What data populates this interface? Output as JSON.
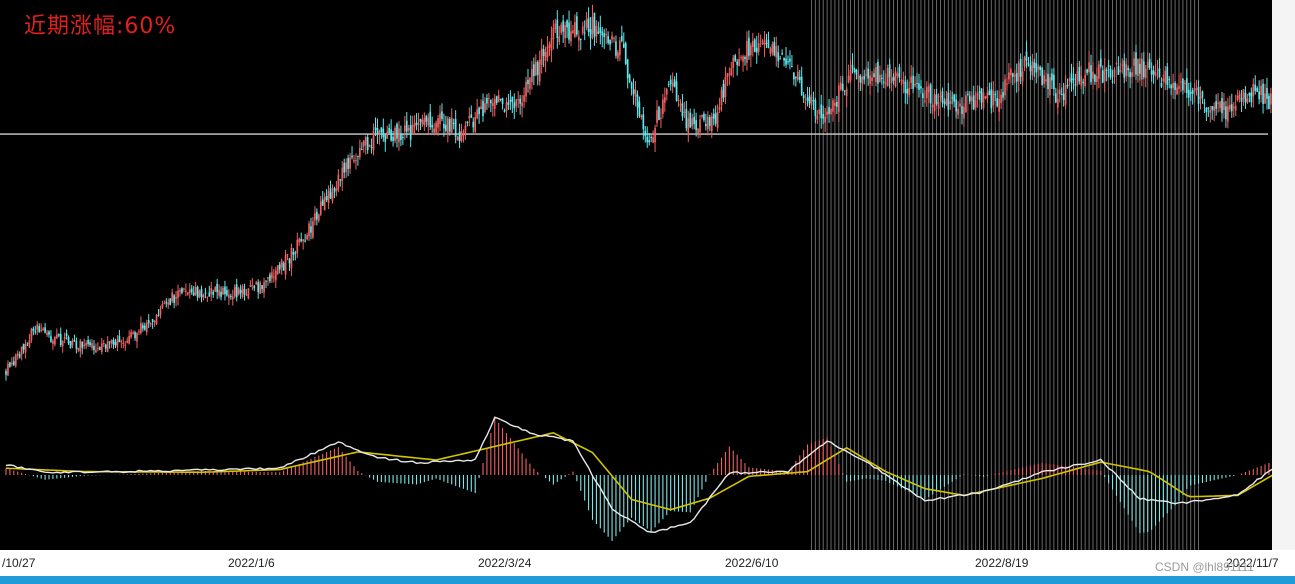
{
  "title": "近期涨幅:60%",
  "watermark": "CSDN @lhl891111",
  "colors": {
    "background": "#000000",
    "up": "#f06060",
    "down": "#5ee8ec",
    "hline": "#d0d0d0",
    "dif": "#e8e8e8",
    "dea": "#d4c400",
    "hist_up": "#f06060",
    "hist_down": "#7ee6e6",
    "highlight": "#9a9a9a"
  },
  "chart_data": {
    "type": "candlestick",
    "x_labels": [
      "/10/27",
      "2022/1/6",
      "2022/3/24",
      "2022/6/10",
      "2022/8/19",
      "2022/11/7"
    ],
    "highlight_range": [
      "2022/6/10",
      "2022/11/7"
    ],
    "price_keypoints": [
      [
        0,
        14.6
      ],
      [
        6,
        15.8
      ],
      [
        14,
        18.0
      ],
      [
        30,
        17.0
      ],
      [
        44,
        16.6
      ],
      [
        60,
        17.0
      ],
      [
        74,
        18.7
      ],
      [
        84,
        20.4
      ],
      [
        96,
        21.0
      ],
      [
        110,
        20.8
      ],
      [
        120,
        20.8
      ],
      [
        134,
        21.6
      ],
      [
        144,
        23.5
      ],
      [
        156,
        26.2
      ],
      [
        176,
        31.5
      ],
      [
        190,
        33.2
      ],
      [
        208,
        33.6
      ],
      [
        222,
        34.8
      ],
      [
        232,
        33.4
      ],
      [
        248,
        36.0
      ],
      [
        262,
        35.8
      ],
      [
        280,
        41.3
      ],
      [
        300,
        41.8
      ],
      [
        316,
        39.8
      ],
      [
        328,
        32.8
      ],
      [
        340,
        37.1
      ],
      [
        348,
        34.6
      ],
      [
        362,
        34.1
      ],
      [
        372,
        39.5
      ],
      [
        388,
        40.6
      ],
      [
        404,
        38.1
      ],
      [
        412,
        35.6
      ],
      [
        420,
        35.0
      ],
      [
        426,
        36.6
      ],
      [
        432,
        38.1
      ],
      [
        440,
        38.4
      ],
      [
        456,
        37.7
      ],
      [
        472,
        36.6
      ],
      [
        486,
        35.6
      ],
      [
        496,
        36.1
      ],
      [
        506,
        36.1
      ],
      [
        514,
        37.8
      ],
      [
        524,
        39.0
      ],
      [
        538,
        36.5
      ],
      [
        552,
        38.3
      ],
      [
        566,
        38.1
      ],
      [
        580,
        38.8
      ],
      [
        594,
        37.6
      ],
      [
        606,
        36.8
      ],
      [
        616,
        35.6
      ],
      [
        624,
        35.2
      ],
      [
        632,
        36.2
      ],
      [
        640,
        37.0
      ],
      [
        648,
        35.7
      ]
    ],
    "reference_line": 33.4,
    "macd_dif_keypoints": [
      [
        0,
        0.15
      ],
      [
        20,
        0.04
      ],
      [
        60,
        0.05
      ],
      [
        100,
        0.07
      ],
      [
        140,
        0.1
      ],
      [
        170,
        0.48
      ],
      [
        190,
        0.26
      ],
      [
        210,
        0.18
      ],
      [
        240,
        0.22
      ],
      [
        250,
        0.84
      ],
      [
        270,
        0.6
      ],
      [
        290,
        0.5
      ],
      [
        310,
        -0.5
      ],
      [
        330,
        -0.85
      ],
      [
        350,
        -0.7
      ],
      [
        370,
        0.03
      ],
      [
        400,
        0.05
      ],
      [
        420,
        0.5
      ],
      [
        440,
        0.2
      ],
      [
        470,
        -0.38
      ],
      [
        500,
        -0.25
      ],
      [
        530,
        0.04
      ],
      [
        560,
        0.22
      ],
      [
        580,
        -0.35
      ],
      [
        600,
        -0.42
      ],
      [
        630,
        -0.3
      ],
      [
        648,
        0.1
      ]
    ],
    "macd_dea_keypoints": [
      [
        0,
        0.1
      ],
      [
        40,
        0.05
      ],
      [
        100,
        0.04
      ],
      [
        140,
        0.08
      ],
      [
        180,
        0.34
      ],
      [
        220,
        0.22
      ],
      [
        250,
        0.42
      ],
      [
        280,
        0.62
      ],
      [
        300,
        0.33
      ],
      [
        320,
        -0.36
      ],
      [
        340,
        -0.51
      ],
      [
        360,
        -0.34
      ],
      [
        380,
        -0.02
      ],
      [
        410,
        0.05
      ],
      [
        430,
        0.4
      ],
      [
        450,
        0.05
      ],
      [
        470,
        -0.2
      ],
      [
        490,
        -0.3
      ],
      [
        530,
        -0.05
      ],
      [
        560,
        0.19
      ],
      [
        585,
        0.05
      ],
      [
        605,
        -0.32
      ],
      [
        630,
        -0.3
      ],
      [
        648,
        0.0
      ]
    ]
  }
}
